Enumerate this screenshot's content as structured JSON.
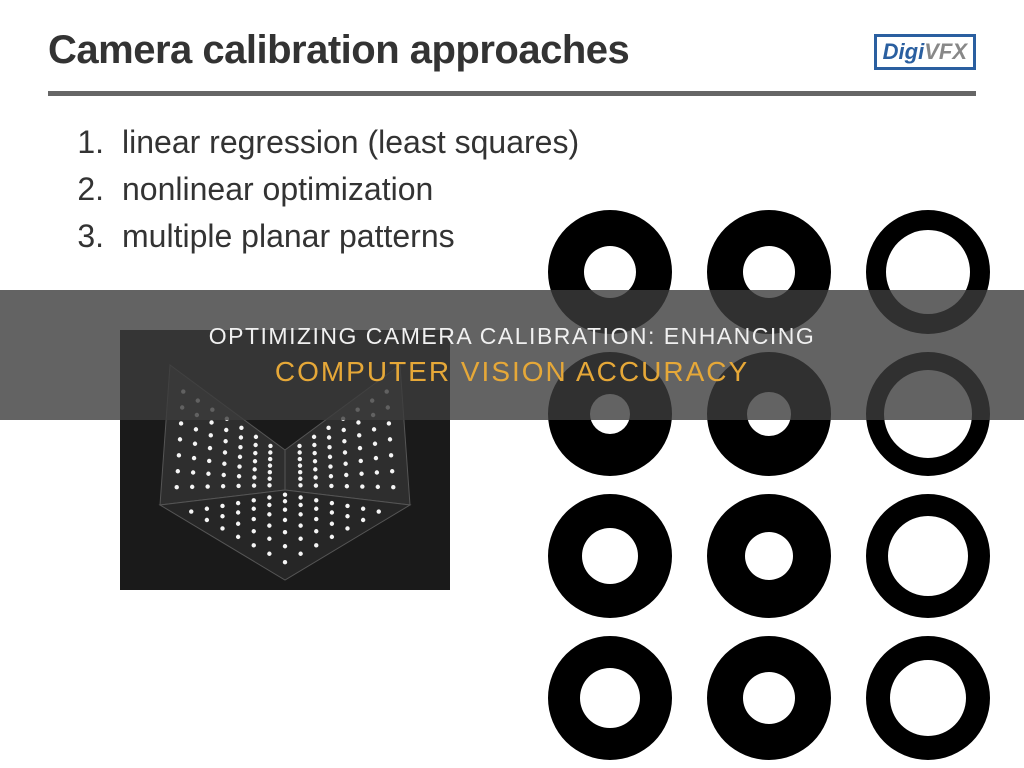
{
  "header": {
    "title": "Camera calibration approaches",
    "logo_part1": "Digi",
    "logo_part2": "VFX",
    "logo_border_color": "#2a5fa0",
    "rule_color": "#666666"
  },
  "list": {
    "items": [
      {
        "num": "1.",
        "text": "linear regression (least squares)"
      },
      {
        "num": "2.",
        "text": "nonlinear optimization"
      },
      {
        "num": "3.",
        "text": "multiple planar patterns"
      }
    ],
    "font_size": 32,
    "text_color": "#333333"
  },
  "overlay": {
    "line1": "OPTIMIZING CAMERA CALIBRATION: ENHANCING",
    "line2": "COMPUTER VISION ACCURACY",
    "bg_color": "rgba(60,60,60,0.80)",
    "line1_color": "#f0f0f0",
    "line2_color": "#e6a838",
    "line1_fontsize": 23,
    "line2_fontsize": 28
  },
  "rings_grid": {
    "rows": 4,
    "cols": 3,
    "outer_radius": 62,
    "fill": "#000000",
    "cells": [
      [
        {
          "inner": 26
        },
        {
          "inner": 26
        },
        {
          "inner": 42
        }
      ],
      [
        {
          "inner": 20
        },
        {
          "inner": 22
        },
        {
          "inner": 44
        }
      ],
      [
        {
          "inner": 28
        },
        {
          "inner": 24
        },
        {
          "inner": 40
        }
      ],
      [
        {
          "inner": 30
        },
        {
          "inner": 26
        },
        {
          "inner": 38
        }
      ]
    ]
  },
  "calib_photo": {
    "bg": "#1a1a1a",
    "plane_fill": "#2e2e2e",
    "plane_stroke": "#555555",
    "dot_fill": "#f5f5f5",
    "dot_r": 2.2,
    "grid_n": 8
  }
}
